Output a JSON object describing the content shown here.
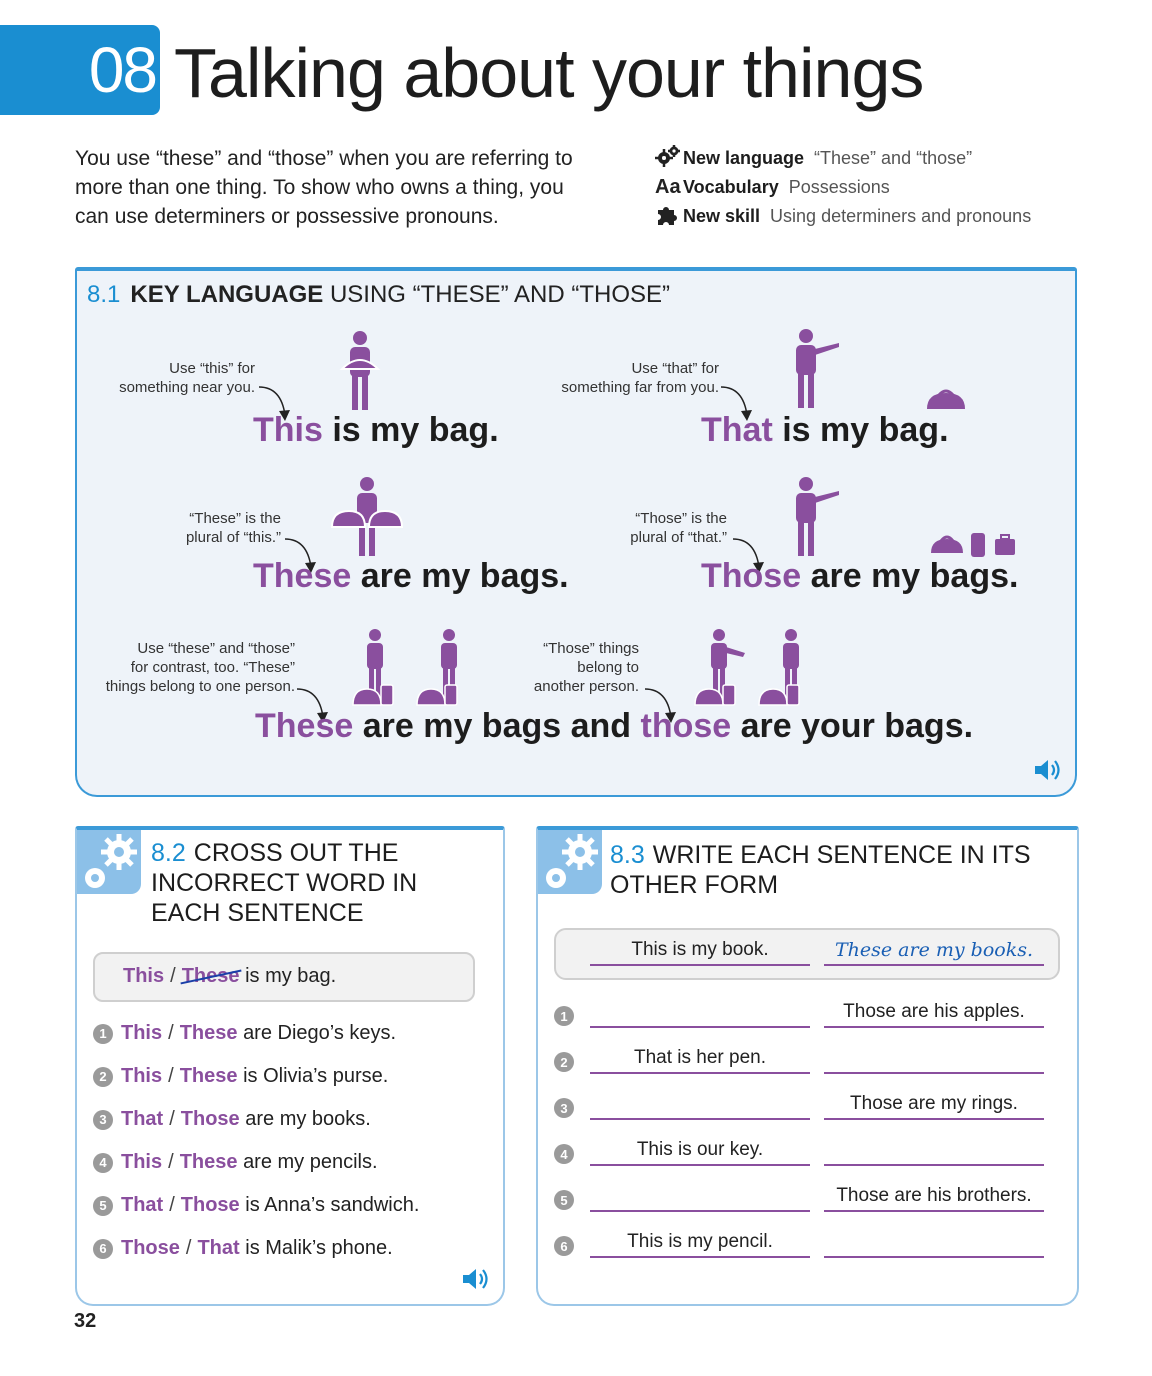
{
  "header": {
    "unit_number": "08",
    "title": "Talking about your things",
    "intro": "You use “these” and “those” when you are referring to more than one thing. To show who owns a thing, you can use determiners or possessive pronouns.",
    "info": [
      {
        "icon": "gears-icon",
        "label": "New language",
        "value": "“These” and “those”"
      },
      {
        "icon": "aa-icon",
        "label": "Vocabulary",
        "value": "Possessions"
      },
      {
        "icon": "puzzle-icon",
        "label": "New skill",
        "value": "Using determiners and pronouns"
      }
    ]
  },
  "section81": {
    "number": "8.1",
    "title_bold": "KEY LANGUAGE",
    "title_rest": "USING “THESE” AND “THOSE”",
    "notes": [
      "Use “this” for",
      "something near you.",
      "Use “that” for",
      "something far from you.",
      "“These” is the",
      "plural of “this.”",
      "“Those” is the",
      "plural of “that.”",
      "Use “these” and “those”",
      "for contrast, too. “These”",
      "things belong to one person.",
      "“Those” things",
      "belong to",
      "another person."
    ],
    "sentences": {
      "s1_word": "This",
      "s1_rest": " is my bag.",
      "s2_word": "That",
      "s2_rest": " is my bag.",
      "s3_word": "These",
      "s3_rest": " are my bags.",
      "s4_word": "Those",
      "s4_rest": " are my bags.",
      "s5_word1": "These",
      "s5_mid": " are my bags and ",
      "s5_word2": "those",
      "s5_rest": " are your bags."
    }
  },
  "section82": {
    "number": "8.2",
    "title": "CROSS OUT THE INCORRECT WORD IN EACH SENTENCE",
    "example": {
      "correct": "This",
      "crossed": "These",
      "rest": "is my bag."
    },
    "items": [
      {
        "n": "1",
        "a": "This",
        "b": "These",
        "rest": "are Diego’s keys."
      },
      {
        "n": "2",
        "a": "This",
        "b": "These",
        "rest": "is Olivia’s purse."
      },
      {
        "n": "3",
        "a": "That",
        "b": "Those",
        "rest": "are my books."
      },
      {
        "n": "4",
        "a": "This",
        "b": "These",
        "rest": "are my pencils."
      },
      {
        "n": "5",
        "a": "That",
        "b": "Those",
        "rest": "is Anna’s sandwich."
      },
      {
        "n": "6",
        "a": "Those",
        "b": "That",
        "rest": "is Malik’s phone."
      }
    ]
  },
  "section83": {
    "number": "8.3",
    "title": "WRITE EACH SENTENCE IN ITS OTHER FORM",
    "example": {
      "left": "This is my book.",
      "right": "These are my books."
    },
    "items": [
      {
        "n": "1",
        "left": "",
        "right": "Those are his apples."
      },
      {
        "n": "2",
        "left": "That is her pen.",
        "right": ""
      },
      {
        "n": "3",
        "left": "",
        "right": "Those are my rings."
      },
      {
        "n": "4",
        "left": "This is our key.",
        "right": ""
      },
      {
        "n": "5",
        "left": "",
        "right": "Those are his brothers."
      },
      {
        "n": "6",
        "left": "This is my pencil.",
        "right": ""
      }
    ]
  },
  "page_number": "32",
  "colors": {
    "accent_blue": "#1a8ed1",
    "purple": "#8a4f9e",
    "panel_bg": "#eef3f9"
  }
}
